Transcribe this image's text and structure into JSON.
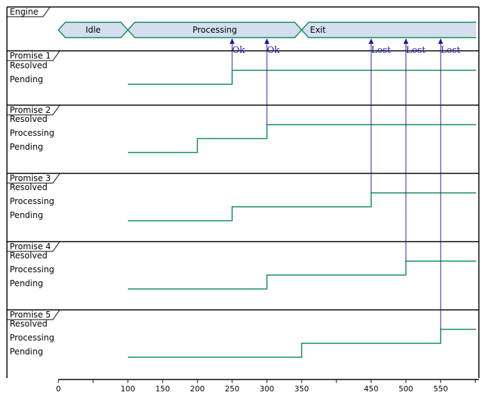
{
  "engine": {
    "title": "Engine",
    "states": [
      {
        "label": "Idle",
        "from": 0,
        "to": 100
      },
      {
        "label": "Processing",
        "from": 100,
        "to": 350
      },
      {
        "label": "Exit",
        "from": 350,
        "to": 600
      }
    ]
  },
  "promises": [
    {
      "title": "Promise 1",
      "levels": [
        "Resolved",
        "Pending"
      ],
      "transitions": [
        {
          "t": 100,
          "state": "Pending"
        },
        {
          "t": 250,
          "state": "Resolved"
        }
      ]
    },
    {
      "title": "Promise 2",
      "levels": [
        "Resolved",
        "Processing",
        "Pending"
      ],
      "transitions": [
        {
          "t": 100,
          "state": "Pending"
        },
        {
          "t": 200,
          "state": "Processing"
        },
        {
          "t": 300,
          "state": "Resolved"
        }
      ]
    },
    {
      "title": "Promise 3",
      "levels": [
        "Resolved",
        "Processing",
        "Pending"
      ],
      "transitions": [
        {
          "t": 100,
          "state": "Pending"
        },
        {
          "t": 250,
          "state": "Processing"
        },
        {
          "t": 450,
          "state": "Resolved"
        }
      ]
    },
    {
      "title": "Promise 4",
      "levels": [
        "Resolved",
        "Processing",
        "Pending"
      ],
      "transitions": [
        {
          "t": 100,
          "state": "Pending"
        },
        {
          "t": 300,
          "state": "Processing"
        },
        {
          "t": 500,
          "state": "Resolved"
        }
      ]
    },
    {
      "title": "Promise 5",
      "levels": [
        "Resolved",
        "Processing",
        "Pending"
      ],
      "transitions": [
        {
          "t": 100,
          "state": "Pending"
        },
        {
          "t": 350,
          "state": "Processing"
        },
        {
          "t": 550,
          "state": "Resolved"
        }
      ]
    }
  ],
  "messages": [
    {
      "t": 250,
      "label": "Ok",
      "from_promise": 0
    },
    {
      "t": 300,
      "label": "Ok",
      "from_promise": 1
    },
    {
      "t": 450,
      "label": "Lost",
      "from_promise": 2
    },
    {
      "t": 500,
      "label": "Lost",
      "from_promise": 3
    },
    {
      "t": 550,
      "label": "Lost",
      "from_promise": 4
    }
  ],
  "axis": {
    "start": 0,
    "end": 600,
    "ticks": [
      0,
      50,
      100,
      150,
      200,
      250,
      300,
      350,
      400,
      450,
      500,
      550,
      600
    ],
    "labels": [
      "0",
      "100",
      "150",
      "200",
      "250",
      "300",
      "350",
      "450",
      "500",
      "550"
    ]
  },
  "colors": {
    "signal": "#0b8a5a",
    "state_fill": "#d4deef",
    "message": "#1a1aa6",
    "frame": "#000000"
  }
}
